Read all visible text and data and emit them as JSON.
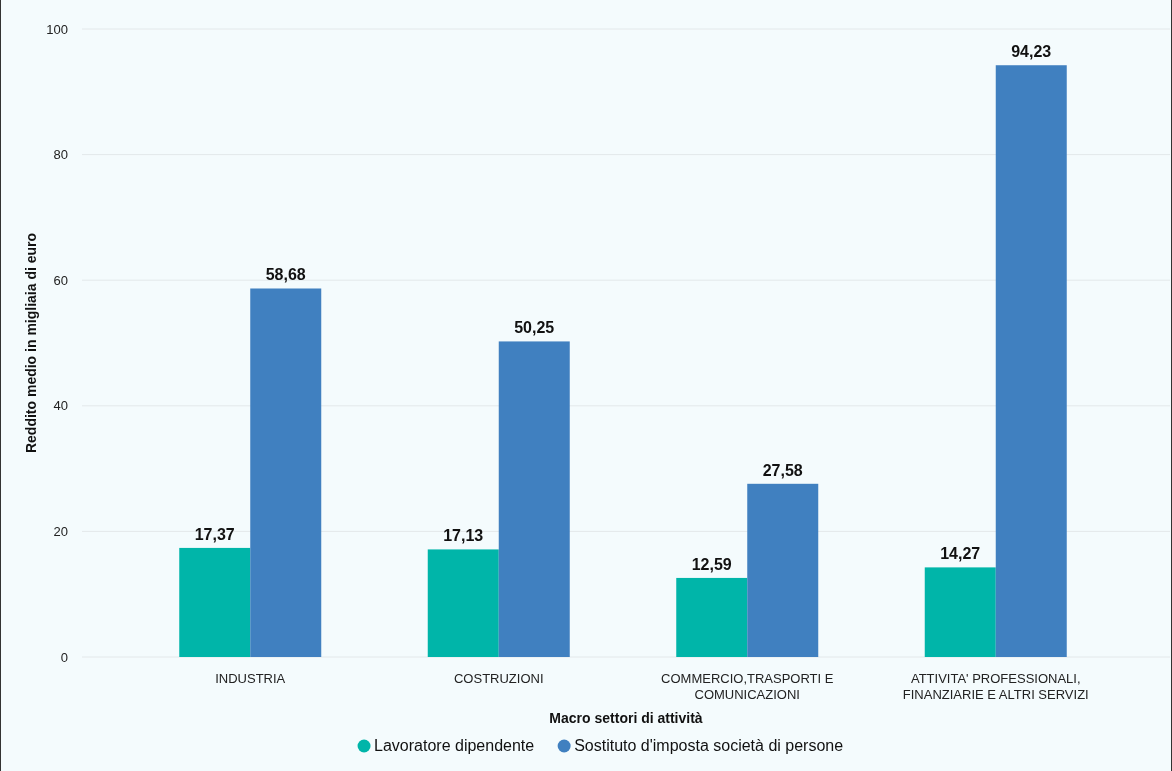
{
  "chart_data": {
    "type": "bar",
    "xlabel": "Macro settori di attività",
    "ylabel": "Reddito medio in migliaia di euro",
    "categories": [
      "INDUSTRIA",
      "COSTRUZIONI",
      "COMMERCIO,TRASPORTI E COMUNICAZIONI",
      "ATTIVITA' PROFESSIONALI, FINANZIARIE E ALTRI SERVIZI"
    ],
    "series": [
      {
        "name": "Lavoratore dipendente",
        "color": "#00b5a9",
        "values": [
          17.37,
          17.13,
          12.59,
          14.27
        ],
        "value_labels": [
          "17,37",
          "17,13",
          "12,59",
          "14,27"
        ]
      },
      {
        "name": "Sostituto d'imposta società di persone",
        "color": "#4080c0",
        "values": [
          58.68,
          50.25,
          27.58,
          94.23
        ],
        "value_labels": [
          "58,68",
          "50,25",
          "27,58",
          "94,23"
        ]
      }
    ],
    "ylim": [
      0,
      100
    ],
    "yticks": [
      0,
      20,
      40,
      60,
      80,
      100
    ],
    "grid": "y",
    "legend": "bottom"
  }
}
